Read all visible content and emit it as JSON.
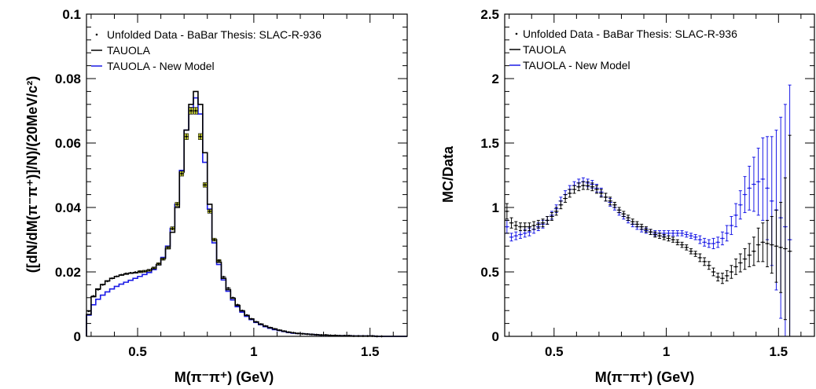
{
  "chart_data": [
    {
      "type": "line",
      "panel": "left",
      "xlabel": "M(π⁻π⁺) (GeV)",
      "ylabel": "([dN/dM(π⁻π⁺)]/N)/(20MeV/c²)",
      "xlim": [
        0.28,
        1.66
      ],
      "ylim": [
        0,
        0.1
      ],
      "x_ticks": [
        0.5,
        1,
        1.5
      ],
      "x_tick_labels": [
        "0.5",
        "1",
        "1.5"
      ],
      "y_ticks": [
        0,
        0.02,
        0.04,
        0.06,
        0.08,
        0.1
      ],
      "y_tick_labels": [
        "0",
        "0.02",
        "0.04",
        "0.06",
        "0.08",
        "0.1"
      ],
      "legend_position": "top-left",
      "legend": [
        "Unfolded Data - BaBar Thesis: SLAC-R-936",
        "TAUOLA",
        "TAUOLA - New Model"
      ],
      "colors": {
        "data": "#000000",
        "tauola": "#000000",
        "new_model": "#1a1ae6",
        "band": "#d8e23a"
      },
      "x": [
        0.29,
        0.31,
        0.33,
        0.35,
        0.37,
        0.39,
        0.41,
        0.43,
        0.45,
        0.47,
        0.49,
        0.51,
        0.53,
        0.55,
        0.57,
        0.59,
        0.61,
        0.63,
        0.65,
        0.67,
        0.69,
        0.71,
        0.73,
        0.75,
        0.77,
        0.79,
        0.81,
        0.83,
        0.85,
        0.87,
        0.89,
        0.91,
        0.93,
        0.95,
        0.97,
        0.99,
        1.01,
        1.03,
        1.05,
        1.07,
        1.09,
        1.11,
        1.13,
        1.15,
        1.17,
        1.19,
        1.21,
        1.23,
        1.25,
        1.27,
        1.29,
        1.31,
        1.33,
        1.35,
        1.37,
        1.39,
        1.41,
        1.43,
        1.45,
        1.47,
        1.49,
        1.51,
        1.53,
        1.55
      ],
      "series": [
        {
          "name": "Unfolded Data - BaBar Thesis: SLAC-R-936",
          "style": "points",
          "values": [
            0.0078,
            0.0125,
            0.0145,
            0.016,
            0.0171,
            0.018,
            0.0186,
            0.0191,
            0.0195,
            0.0197,
            0.0199,
            0.0201,
            0.0202,
            0.0205,
            0.0212,
            0.0225,
            0.024,
            0.0275,
            0.0335,
            0.041,
            0.0505,
            0.062,
            0.07,
            0.07,
            0.062,
            0.047,
            0.0388,
            0.03,
            0.0235,
            0.0185,
            0.015,
            0.012,
            0.0098,
            0.008,
            0.0066,
            0.0054,
            0.0045,
            0.0038,
            0.0032,
            0.0027,
            0.0023,
            0.0019,
            0.0016,
            0.0013,
            0.0011,
            0.0009,
            0.0008,
            0.0007,
            0.0006,
            0.0005,
            0.0004,
            0.0004,
            0.0003,
            0.0003,
            0.0002,
            0.0002,
            0.0002,
            0.0001,
            0.0001,
            0.0001,
            0.0001,
            0.0001,
            0.0,
            0.0
          ]
        },
        {
          "name": "TAUOLA",
          "style": "step",
          "values": [
            0.0068,
            0.0123,
            0.0147,
            0.0161,
            0.0172,
            0.018,
            0.0186,
            0.019,
            0.0193,
            0.0196,
            0.0197,
            0.0199,
            0.0202,
            0.0205,
            0.0211,
            0.0222,
            0.0242,
            0.0272,
            0.0323,
            0.04,
            0.051,
            0.064,
            0.072,
            0.076,
            0.072,
            0.057,
            0.041,
            0.03,
            0.023,
            0.018,
            0.0145,
            0.0118,
            0.0096,
            0.0079,
            0.0065,
            0.0054,
            0.0045,
            0.0038,
            0.0032,
            0.0027,
            0.0023,
            0.0019,
            0.0016,
            0.0013,
            0.0011,
            0.0009,
            0.0008,
            0.0007,
            0.0006,
            0.0005,
            0.0004,
            0.0004,
            0.0003,
            0.0003,
            0.0002,
            0.0002,
            0.0002,
            0.0001,
            0.0001,
            0.0001,
            0.0001,
            0.0001,
            0.0,
            0.0
          ]
        },
        {
          "name": "TAUOLA - New Model",
          "style": "step",
          "values": [
            0.0066,
            0.0098,
            0.0115,
            0.0128,
            0.0138,
            0.0147,
            0.0155,
            0.0162,
            0.0168,
            0.0174,
            0.018,
            0.0186,
            0.0192,
            0.0198,
            0.0207,
            0.0222,
            0.0245,
            0.028,
            0.0335,
            0.041,
            0.0515,
            0.064,
            0.071,
            0.074,
            0.069,
            0.054,
            0.0395,
            0.029,
            0.0223,
            0.0175,
            0.014,
            0.0113,
            0.0092,
            0.0075,
            0.0062,
            0.0052,
            0.0043,
            0.0036,
            0.003,
            0.0025,
            0.0021,
            0.0018,
            0.0015,
            0.0012,
            0.001,
            0.0009,
            0.0008,
            0.0007,
            0.0006,
            0.0005,
            0.0004,
            0.0004,
            0.0003,
            0.0003,
            0.0002,
            0.0002,
            0.0002,
            0.0001,
            0.0001,
            0.0001,
            0.0001,
            0.0001,
            0.0,
            0.0
          ]
        }
      ]
    },
    {
      "type": "scatter",
      "panel": "right",
      "xlabel": "M(π⁻π⁺) (GeV)",
      "ylabel": "MC/Data",
      "xlim": [
        0.28,
        1.66
      ],
      "ylim": [
        0,
        2.5
      ],
      "x_ticks": [
        0.5,
        1,
        1.5
      ],
      "x_tick_labels": [
        "0.5",
        "1",
        "1.5"
      ],
      "y_ticks": [
        0,
        0.5,
        1,
        1.5,
        2,
        2.5
      ],
      "y_tick_labels": [
        "0",
        "0.5",
        "1",
        "1.5",
        "2",
        "2.5"
      ],
      "legend_position": "top-left",
      "legend": [
        "Unfolded Data - BaBar Thesis: SLAC-R-936",
        "TAUOLA",
        "TAUOLA - New Model"
      ],
      "colors": {
        "tauola": "#000000",
        "new_model": "#1a1ae6"
      },
      "x": [
        0.29,
        0.31,
        0.33,
        0.35,
        0.37,
        0.39,
        0.41,
        0.43,
        0.45,
        0.47,
        0.49,
        0.51,
        0.53,
        0.55,
        0.57,
        0.59,
        0.61,
        0.63,
        0.65,
        0.67,
        0.69,
        0.71,
        0.73,
        0.75,
        0.77,
        0.79,
        0.81,
        0.83,
        0.85,
        0.87,
        0.89,
        0.91,
        0.93,
        0.95,
        0.97,
        0.99,
        1.01,
        1.03,
        1.05,
        1.07,
        1.09,
        1.11,
        1.13,
        1.15,
        1.17,
        1.19,
        1.21,
        1.23,
        1.25,
        1.27,
        1.29,
        1.31,
        1.33,
        1.35,
        1.37,
        1.39,
        1.41,
        1.43,
        1.45,
        1.47,
        1.49,
        1.51,
        1.53,
        1.55
      ],
      "series": [
        {
          "name": "TAUOLA",
          "values": [
            0.97,
            0.88,
            0.86,
            0.85,
            0.85,
            0.85,
            0.86,
            0.87,
            0.88,
            0.9,
            0.93,
            0.97,
            1.02,
            1.07,
            1.11,
            1.14,
            1.16,
            1.17,
            1.17,
            1.16,
            1.14,
            1.11,
            1.08,
            1.05,
            1.02,
            0.98,
            0.95,
            0.92,
            0.89,
            0.87,
            0.85,
            0.83,
            0.81,
            0.79,
            0.78,
            0.77,
            0.76,
            0.75,
            0.73,
            0.71,
            0.69,
            0.66,
            0.64,
            0.61,
            0.58,
            0.55,
            0.5,
            0.46,
            0.45,
            0.47,
            0.5,
            0.54,
            0.57,
            0.6,
            0.63,
            0.66,
            0.71,
            0.73,
            0.72,
            0.71,
            0.7,
            0.69,
            0.68,
            0.66
          ],
          "errors": [
            0.06,
            0.04,
            0.03,
            0.03,
            0.03,
            0.03,
            0.03,
            0.03,
            0.03,
            0.03,
            0.03,
            0.03,
            0.03,
            0.03,
            0.03,
            0.03,
            0.03,
            0.03,
            0.03,
            0.03,
            0.03,
            0.03,
            0.03,
            0.03,
            0.02,
            0.02,
            0.02,
            0.02,
            0.02,
            0.02,
            0.02,
            0.02,
            0.02,
            0.02,
            0.02,
            0.02,
            0.02,
            0.02,
            0.02,
            0.02,
            0.02,
            0.02,
            0.02,
            0.03,
            0.03,
            0.03,
            0.03,
            0.03,
            0.04,
            0.04,
            0.05,
            0.06,
            0.07,
            0.08,
            0.09,
            0.11,
            0.13,
            0.15,
            0.18,
            0.22,
            0.28,
            0.35,
            0.55,
            0.9
          ]
        },
        {
          "name": "TAUOLA - New Model",
          "values": [
            0.85,
            0.77,
            0.78,
            0.79,
            0.8,
            0.81,
            0.83,
            0.85,
            0.87,
            0.9,
            0.94,
            0.99,
            1.05,
            1.1,
            1.14,
            1.17,
            1.19,
            1.2,
            1.19,
            1.18,
            1.15,
            1.12,
            1.08,
            1.04,
            1.0,
            0.96,
            0.93,
            0.9,
            0.87,
            0.85,
            0.83,
            0.82,
            0.81,
            0.8,
            0.8,
            0.8,
            0.8,
            0.8,
            0.8,
            0.8,
            0.79,
            0.78,
            0.77,
            0.75,
            0.73,
            0.72,
            0.72,
            0.73,
            0.76,
            0.8,
            0.86,
            0.94,
            1.02,
            1.1,
            1.15,
            1.18,
            1.2,
            1.22,
            1.15,
            1.05,
            0.98,
            0.92,
            0.85,
            0.75
          ],
          "errors": [
            0.05,
            0.03,
            0.03,
            0.03,
            0.03,
            0.03,
            0.03,
            0.03,
            0.03,
            0.03,
            0.03,
            0.03,
            0.03,
            0.03,
            0.03,
            0.03,
            0.03,
            0.03,
            0.03,
            0.03,
            0.03,
            0.03,
            0.03,
            0.03,
            0.02,
            0.02,
            0.02,
            0.02,
            0.02,
            0.02,
            0.02,
            0.02,
            0.02,
            0.02,
            0.02,
            0.02,
            0.02,
            0.02,
            0.02,
            0.02,
            0.02,
            0.02,
            0.02,
            0.03,
            0.03,
            0.03,
            0.04,
            0.04,
            0.05,
            0.06,
            0.07,
            0.09,
            0.11,
            0.14,
            0.17,
            0.21,
            0.26,
            0.32,
            0.4,
            0.5,
            0.62,
            0.78,
            0.95,
            1.2
          ]
        }
      ]
    }
  ]
}
